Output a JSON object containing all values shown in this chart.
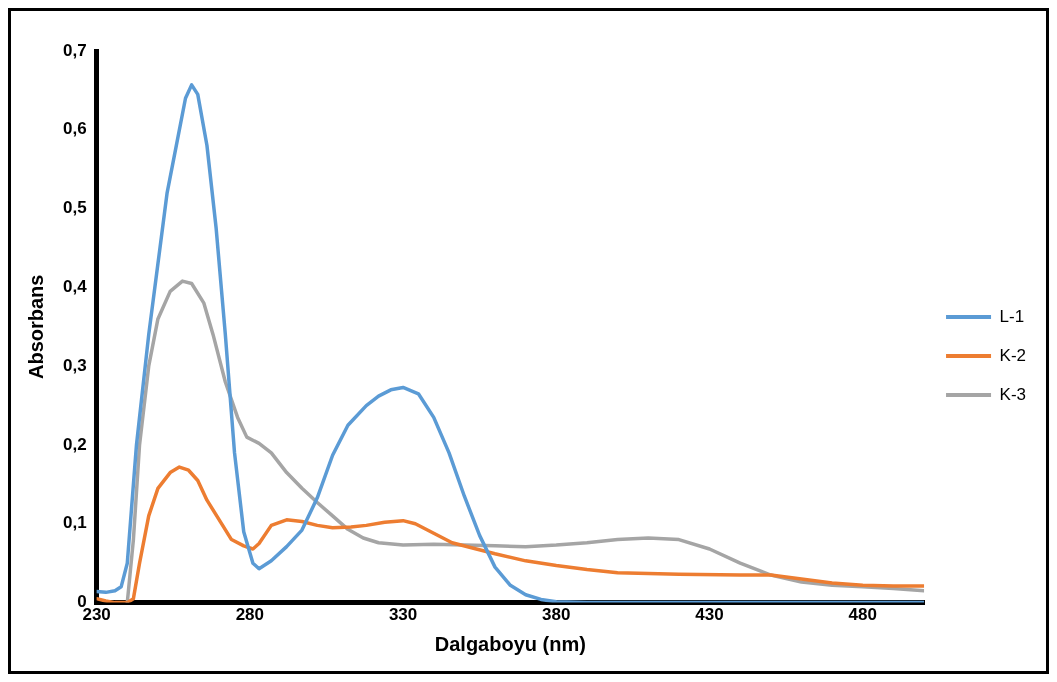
{
  "chart_data": {
    "type": "line",
    "xlabel": "Dalgaboyu (nm)",
    "ylabel": "Absorbans",
    "xlim": [
      230,
      500
    ],
    "xticks": [
      230,
      280,
      330,
      380,
      430,
      480
    ],
    "ylim": [
      0,
      0.7
    ],
    "yticks": [
      0,
      {
        "value": 0.1,
        "label": "0,1"
      },
      {
        "value": 0.2,
        "label": "0,2"
      },
      {
        "value": 0.3,
        "label": "0,3"
      },
      {
        "value": 0.4,
        "label": "0,4"
      },
      {
        "value": 0.5,
        "label": "0,5"
      },
      {
        "value": 0.6,
        "label": "0,6"
      },
      {
        "value": 0.7,
        "label": "0,7"
      }
    ],
    "grid": false,
    "legend": "right",
    "marker": "none",
    "line_style": "solid",
    "series": [
      {
        "name": "L-1",
        "color": "#5b9bd5",
        "x": [
          230,
          233,
          236,
          238,
          240,
          243,
          247,
          250,
          253,
          256,
          259,
          261,
          263,
          266,
          269,
          272,
          275,
          278,
          281,
          283,
          287,
          292,
          297,
          302,
          307,
          312,
          318,
          322,
          326,
          330,
          335,
          340,
          345,
          350,
          355,
          360,
          365,
          370,
          375,
          380,
          390,
          500
        ],
        "values": [
          0.014,
          0.013,
          0.015,
          0.02,
          0.05,
          0.2,
          0.34,
          0.43,
          0.52,
          0.58,
          0.64,
          0.657,
          0.645,
          0.58,
          0.475,
          0.34,
          0.19,
          0.09,
          0.05,
          0.043,
          0.053,
          0.071,
          0.092,
          0.133,
          0.187,
          0.225,
          0.25,
          0.262,
          0.27,
          0.273,
          0.265,
          0.235,
          0.19,
          0.135,
          0.085,
          0.045,
          0.022,
          0.01,
          0.004,
          0.001,
          0,
          0
        ]
      },
      {
        "name": "K-2",
        "color": "#ed7d31",
        "x": [
          230,
          233,
          236,
          240,
          242,
          244,
          247,
          250,
          254,
          257,
          260,
          263,
          266,
          270,
          274,
          278,
          281,
          283,
          287,
          292,
          297,
          302,
          307,
          313,
          318,
          324,
          330,
          334,
          340,
          346,
          352,
          360,
          370,
          380,
          390,
          400,
          420,
          440,
          450,
          460,
          470,
          480,
          490,
          500
        ],
        "values": [
          0.005,
          0.002,
          0,
          0,
          0.005,
          0.05,
          0.11,
          0.145,
          0.165,
          0.172,
          0.168,
          0.155,
          0.13,
          0.105,
          0.08,
          0.072,
          0.068,
          0.075,
          0.098,
          0.105,
          0.103,
          0.098,
          0.095,
          0.096,
          0.098,
          0.102,
          0.104,
          0.1,
          0.088,
          0.076,
          0.07,
          0.062,
          0.053,
          0.047,
          0.042,
          0.038,
          0.036,
          0.035,
          0.035,
          0.03,
          0.025,
          0.022,
          0.021,
          0.021
        ]
      },
      {
        "name": "K-3",
        "color": "#a5a5a5",
        "x": [
          240,
          242,
          244,
          247,
          250,
          254,
          258,
          261,
          265,
          268,
          272,
          276,
          279,
          283,
          287,
          292,
          297,
          302,
          307,
          312,
          317,
          322,
          330,
          340,
          350,
          360,
          370,
          380,
          390,
          400,
          410,
          420,
          430,
          440,
          450,
          460,
          470,
          480,
          490,
          500
        ],
        "values": [
          0,
          0.08,
          0.2,
          0.3,
          0.36,
          0.395,
          0.408,
          0.405,
          0.38,
          0.34,
          0.28,
          0.235,
          0.21,
          0.202,
          0.19,
          0.165,
          0.145,
          0.127,
          0.11,
          0.093,
          0.082,
          0.076,
          0.073,
          0.074,
          0.073,
          0.072,
          0.071,
          0.073,
          0.076,
          0.08,
          0.082,
          0.08,
          0.068,
          0.05,
          0.035,
          0.026,
          0.022,
          0.02,
          0.018,
          0.015
        ]
      }
    ]
  }
}
